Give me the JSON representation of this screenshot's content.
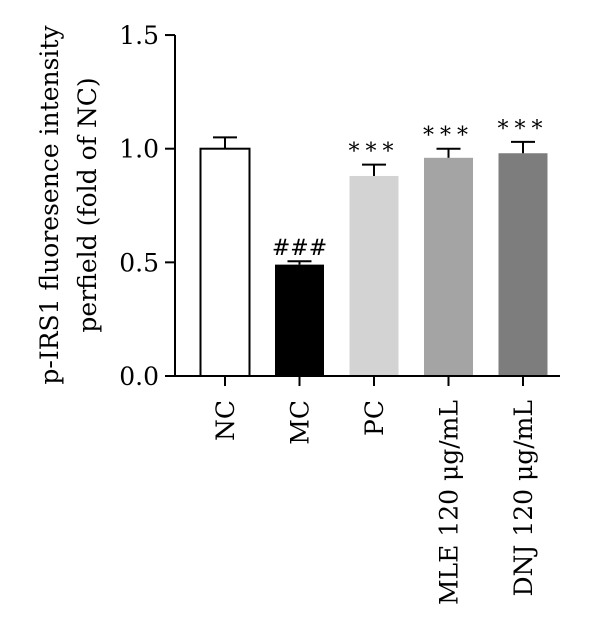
{
  "chart_data": {
    "type": "bar",
    "ylabel_line1": "p-IRS1 fluoresence intensity",
    "ylabel_line2": "perfield (fold of NC)",
    "ylim": [
      0,
      1.5
    ],
    "yticks": [
      0.0,
      0.5,
      1.0,
      1.5
    ],
    "ytick_labels": [
      "0.0",
      "0.5",
      "1.0",
      "1.5"
    ],
    "categories": [
      "NC",
      "MC",
      "PC",
      "MLE 120 μg/mL",
      "DNJ 120 μg/mL"
    ],
    "values": [
      1.0,
      0.49,
      0.88,
      0.96,
      0.98
    ],
    "errors": [
      0.05,
      0.015,
      0.05,
      0.04,
      0.05
    ],
    "annotations": [
      "",
      "###",
      "***",
      "***",
      "***"
    ],
    "colors": [
      "#ffffff",
      "#000000",
      "#d3d3d3",
      "#a4a4a4",
      "#7d7d7d"
    ],
    "grid": false
  }
}
